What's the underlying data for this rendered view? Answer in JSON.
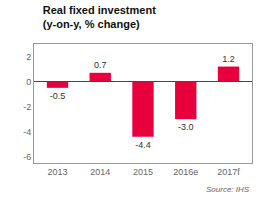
{
  "chart_data": {
    "type": "bar",
    "title": "Real fixed investment",
    "subtitle": "(y-on-y, % change)",
    "categories": [
      "2013",
      "2014",
      "2015",
      "2016e",
      "2017f"
    ],
    "values": [
      -0.5,
      0.7,
      -4.4,
      -3.0,
      1.2
    ],
    "value_labels": [
      "-0.5",
      "0.7",
      "-4.4",
      "-3.0",
      "1.2"
    ],
    "data_labels": true,
    "color": "#e8003d",
    "ylim": [
      -6.5,
      3.0
    ],
    "yticks": [
      -6,
      -4,
      -2,
      0,
      2
    ],
    "grid": false,
    "annotations": [
      "Source: IHS"
    ]
  }
}
